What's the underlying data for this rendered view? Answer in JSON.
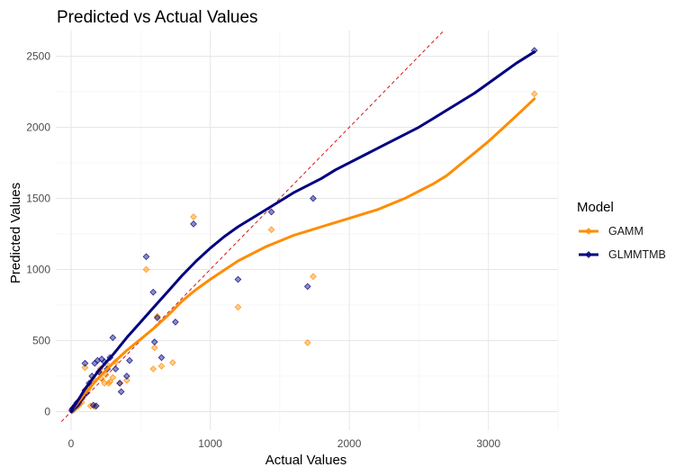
{
  "chart_data": {
    "type": "scatter",
    "title": "Predicted vs Actual Values",
    "xlabel": "Actual Values",
    "ylabel": "Predicted Values",
    "xlim": [
      -110,
      3500
    ],
    "ylim": [
      -130,
      2680
    ],
    "x_ticks": [
      0,
      1000,
      2000,
      3000
    ],
    "y_ticks": [
      0,
      500,
      1000,
      1500,
      2000,
      2500
    ],
    "grid": true,
    "reference_line": {
      "style": "dashed",
      "color": "#cc0000",
      "slope": 1,
      "intercept": 0
    },
    "legend": {
      "title": "Model",
      "position": "right"
    },
    "series": [
      {
        "name": "GAMM",
        "color": "#ff8c00",
        "points": [
          [
            5,
            5
          ],
          [
            10,
            15
          ],
          [
            15,
            10
          ],
          [
            20,
            25
          ],
          [
            25,
            20
          ],
          [
            30,
            40
          ],
          [
            35,
            30
          ],
          [
            40,
            50
          ],
          [
            45,
            35
          ],
          [
            50,
            60
          ],
          [
            55,
            45
          ],
          [
            60,
            55
          ],
          [
            70,
            80
          ],
          [
            75,
            65
          ],
          [
            80,
            90
          ],
          [
            90,
            110
          ],
          [
            100,
            130
          ],
          [
            100,
            310
          ],
          [
            120,
            150
          ],
          [
            130,
            170
          ],
          [
            140,
            40
          ],
          [
            150,
            200
          ],
          [
            160,
            230
          ],
          [
            170,
            35
          ],
          [
            200,
            280
          ],
          [
            210,
            300
          ],
          [
            220,
            230
          ],
          [
            240,
            200
          ],
          [
            250,
            260
          ],
          [
            260,
            330
          ],
          [
            270,
            200
          ],
          [
            280,
            210
          ],
          [
            300,
            240
          ],
          [
            320,
            350
          ],
          [
            350,
            200
          ],
          [
            400,
            220
          ],
          [
            540,
            1000
          ],
          [
            590,
            300
          ],
          [
            600,
            450
          ],
          [
            620,
            670
          ],
          [
            650,
            320
          ],
          [
            730,
            345
          ],
          [
            880,
            1370
          ],
          [
            1200,
            735
          ],
          [
            1440,
            1280
          ],
          [
            1700,
            485
          ],
          [
            1740,
            950
          ],
          [
            3330,
            2235
          ]
        ],
        "smooth": [
          [
            0,
            0
          ],
          [
            100,
            130
          ],
          [
            200,
            240
          ],
          [
            300,
            340
          ],
          [
            400,
            430
          ],
          [
            500,
            510
          ],
          [
            600,
            590
          ],
          [
            700,
            680
          ],
          [
            800,
            780
          ],
          [
            900,
            860
          ],
          [
            1000,
            930
          ],
          [
            1100,
            995
          ],
          [
            1200,
            1060
          ],
          [
            1300,
            1110
          ],
          [
            1400,
            1160
          ],
          [
            1500,
            1200
          ],
          [
            1600,
            1240
          ],
          [
            1700,
            1270
          ],
          [
            1800,
            1300
          ],
          [
            1900,
            1330
          ],
          [
            2000,
            1360
          ],
          [
            2100,
            1390
          ],
          [
            2200,
            1420
          ],
          [
            2300,
            1460
          ],
          [
            2400,
            1500
          ],
          [
            2500,
            1550
          ],
          [
            2600,
            1600
          ],
          [
            2700,
            1660
          ],
          [
            2800,
            1740
          ],
          [
            2900,
            1820
          ],
          [
            3000,
            1900
          ],
          [
            3100,
            1990
          ],
          [
            3200,
            2080
          ],
          [
            3330,
            2200
          ]
        ]
      },
      {
        "name": "GLMMTMB",
        "color": "#000080",
        "points": [
          [
            5,
            10
          ],
          [
            10,
            20
          ],
          [
            15,
            25
          ],
          [
            20,
            30
          ],
          [
            25,
            35
          ],
          [
            30,
            45
          ],
          [
            35,
            40
          ],
          [
            40,
            60
          ],
          [
            45,
            50
          ],
          [
            50,
            70
          ],
          [
            55,
            65
          ],
          [
            60,
            80
          ],
          [
            70,
            90
          ],
          [
            80,
            100
          ],
          [
            90,
            120
          ],
          [
            100,
            150
          ],
          [
            100,
            340
          ],
          [
            110,
            130
          ],
          [
            130,
            200
          ],
          [
            150,
            250
          ],
          [
            160,
            45
          ],
          [
            170,
            340
          ],
          [
            180,
            40
          ],
          [
            190,
            360
          ],
          [
            200,
            280
          ],
          [
            220,
            370
          ],
          [
            240,
            350
          ],
          [
            260,
            300
          ],
          [
            280,
            380
          ],
          [
            300,
            520
          ],
          [
            320,
            300
          ],
          [
            350,
            200
          ],
          [
            360,
            140
          ],
          [
            400,
            250
          ],
          [
            420,
            360
          ],
          [
            540,
            1090
          ],
          [
            590,
            840
          ],
          [
            600,
            490
          ],
          [
            620,
            660
          ],
          [
            650,
            380
          ],
          [
            750,
            630
          ],
          [
            880,
            1320
          ],
          [
            1200,
            930
          ],
          [
            1440,
            1405
          ],
          [
            1700,
            880
          ],
          [
            1740,
            1500
          ],
          [
            3330,
            2540
          ]
        ],
        "smooth": [
          [
            0,
            0
          ],
          [
            100,
            160
          ],
          [
            200,
            290
          ],
          [
            300,
            400
          ],
          [
            400,
            520
          ],
          [
            500,
            630
          ],
          [
            600,
            740
          ],
          [
            700,
            850
          ],
          [
            800,
            960
          ],
          [
            900,
            1060
          ],
          [
            1000,
            1150
          ],
          [
            1100,
            1230
          ],
          [
            1200,
            1300
          ],
          [
            1300,
            1360
          ],
          [
            1400,
            1420
          ],
          [
            1500,
            1480
          ],
          [
            1600,
            1540
          ],
          [
            1700,
            1590
          ],
          [
            1800,
            1640
          ],
          [
            1900,
            1700
          ],
          [
            2000,
            1750
          ],
          [
            2100,
            1800
          ],
          [
            2200,
            1850
          ],
          [
            2300,
            1900
          ],
          [
            2400,
            1950
          ],
          [
            2500,
            2000
          ],
          [
            2600,
            2060
          ],
          [
            2700,
            2120
          ],
          [
            2800,
            2180
          ],
          [
            2900,
            2240
          ],
          [
            3000,
            2310
          ],
          [
            3100,
            2380
          ],
          [
            3200,
            2450
          ],
          [
            3330,
            2530
          ]
        ]
      }
    ]
  }
}
